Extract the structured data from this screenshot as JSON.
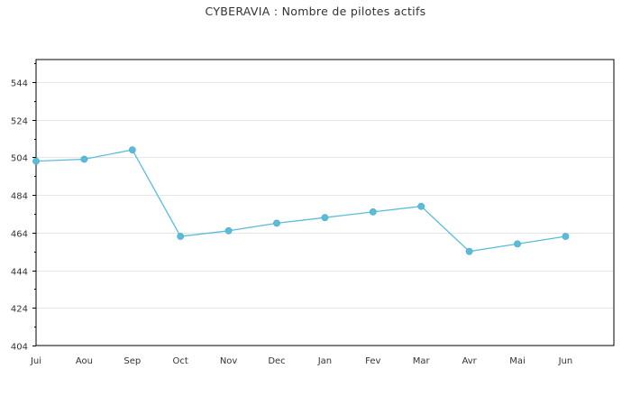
{
  "title": "CYBERAVIA : Nombre de pilotes actifs",
  "chart_data": {
    "type": "line",
    "title": "CYBERAVIA : Nombre de pilotes actifs",
    "xlabel": "",
    "ylabel": "",
    "categories": [
      "Jui",
      "Aou",
      "Sep",
      "Oct",
      "Nov",
      "Dec",
      "Jan",
      "Fev",
      "Mar",
      "Avr",
      "Mai",
      "Jun"
    ],
    "series": [
      {
        "values": [
          502,
          503,
          508,
          462,
          465,
          469,
          472,
          475,
          478,
          454,
          458,
          462
        ]
      }
    ],
    "ylim": [
      404,
      556
    ],
    "yticks": [
      404,
      424,
      444,
      464,
      484,
      504,
      524,
      544
    ],
    "grid": true,
    "legend": "none",
    "colors": {
      "line": "#5bbcd9",
      "marker": "#5bbcd9",
      "grid": "#e6e6e6",
      "axis": "#000000",
      "text": "#333333"
    }
  }
}
